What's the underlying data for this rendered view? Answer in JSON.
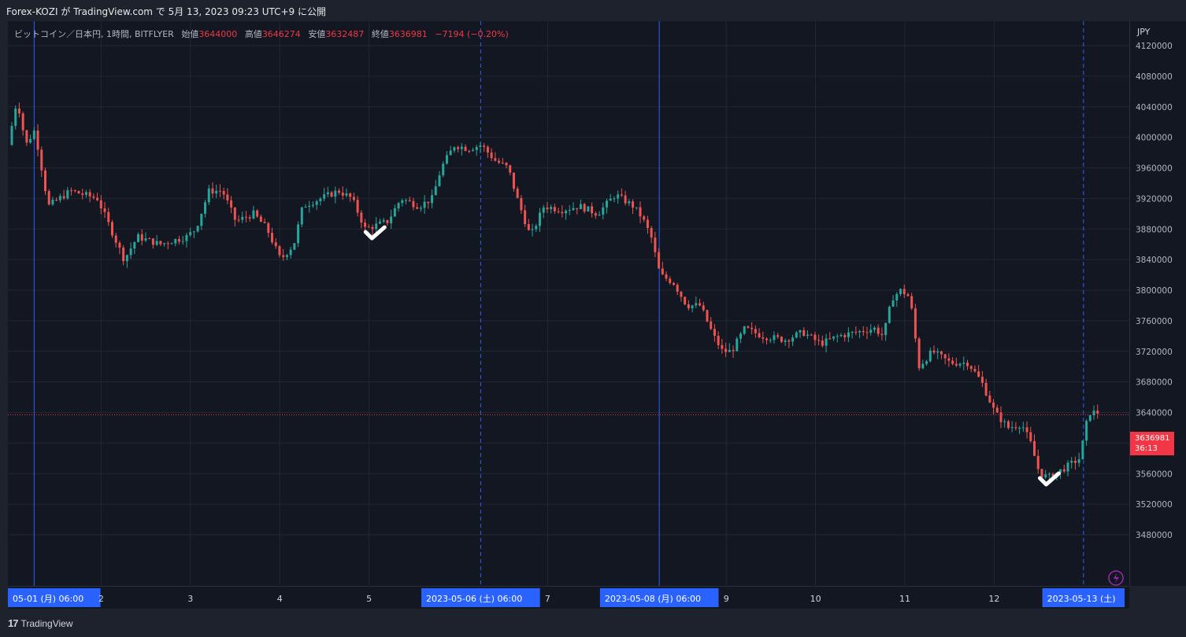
{
  "header": {
    "publish_text": "Forex-KOZI が TradingView.com で 5月 13, 2023 09:23 UTC+9 に公開"
  },
  "legend": {
    "symbol": "ビットコイン／日本円, 1時間, BITFLYER",
    "open_label": "始値",
    "open": "3644000",
    "high_label": "高値",
    "high": "3646274",
    "low_label": "安値",
    "low": "3632487",
    "close_label": "終値",
    "close": "3636981",
    "change": "−7194 (−0.20%)"
  },
  "price_axis": {
    "currency": "JPY"
  },
  "last_price_tag": {
    "price": "3636981",
    "countdown": "36:13"
  },
  "footer": {
    "brand": "TradingView"
  },
  "colors": {
    "up": "#26a69a",
    "down": "#ef5350",
    "background": "#131722",
    "accent": "#2962ff"
  },
  "chart_data": {
    "type": "candlestick",
    "timeframe": "1h",
    "ylim": [
      3450000,
      4130000
    ],
    "y_ticks": [
      "4120000",
      "4080000",
      "4040000",
      "4000000",
      "3960000",
      "3920000",
      "3880000",
      "3840000",
      "3800000",
      "3760000",
      "3720000",
      "3680000",
      "3640000",
      "3600000",
      "3560000",
      "3520000",
      "3480000"
    ],
    "x_ticks": [
      {
        "label": "05-01 (月)  06:00",
        "highlight": true,
        "day": 0.25
      },
      {
        "label": "2",
        "highlight": false,
        "day": 1
      },
      {
        "label": "3",
        "highlight": false,
        "day": 2
      },
      {
        "label": "4",
        "highlight": false,
        "day": 3
      },
      {
        "label": "5",
        "highlight": false,
        "day": 4
      },
      {
        "label": "2023-05-06 (土)  06:00",
        "highlight": true,
        "day": 5.25
      },
      {
        "label": "7",
        "highlight": false,
        "day": 6
      },
      {
        "label": "2023-05-08 (月)  06:00",
        "highlight": true,
        "day": 7.25
      },
      {
        "label": "9",
        "highlight": false,
        "day": 8
      },
      {
        "label": "10",
        "highlight": false,
        "day": 9
      },
      {
        "label": "11",
        "highlight": false,
        "day": 10
      },
      {
        "label": "12",
        "highlight": false,
        "day": 11
      },
      {
        "label": "2023-05-13 (土)",
        "highlight": true,
        "day": 12.0
      }
    ],
    "vertical_lines": [
      {
        "day": 0.25,
        "style": "solid"
      },
      {
        "day": 5.25,
        "style": "dashed"
      },
      {
        "day": 7.25,
        "style": "solid"
      },
      {
        "day": 12.0,
        "style": "dashed"
      }
    ],
    "checkmarks": [
      {
        "day": 4.05,
        "price": 3872000
      },
      {
        "day": 11.6,
        "price": 3550000
      }
    ],
    "last_price": 3636981,
    "anchors": [
      [
        0.0,
        3990000
      ],
      [
        0.1,
        4050000
      ],
      [
        0.2,
        3990000
      ],
      [
        0.3,
        4010000
      ],
      [
        0.45,
        3910000
      ],
      [
        0.7,
        3930000
      ],
      [
        1.0,
        3920000
      ],
      [
        1.15,
        3880000
      ],
      [
        1.3,
        3840000
      ],
      [
        1.45,
        3870000
      ],
      [
        1.7,
        3860000
      ],
      [
        2.0,
        3870000
      ],
      [
        2.1,
        3880000
      ],
      [
        2.25,
        3930000
      ],
      [
        2.4,
        3930000
      ],
      [
        2.55,
        3890000
      ],
      [
        2.75,
        3900000
      ],
      [
        2.9,
        3880000
      ],
      [
        3.05,
        3840000
      ],
      [
        3.2,
        3860000
      ],
      [
        3.3,
        3910000
      ],
      [
        3.5,
        3920000
      ],
      [
        3.7,
        3930000
      ],
      [
        3.85,
        3920000
      ],
      [
        4.0,
        3880000
      ],
      [
        4.25,
        3890000
      ],
      [
        4.4,
        3920000
      ],
      [
        4.6,
        3910000
      ],
      [
        4.75,
        3920000
      ],
      [
        4.85,
        3960000
      ],
      [
        5.0,
        3990000
      ],
      [
        5.15,
        3985000
      ],
      [
        5.3,
        3990000
      ],
      [
        5.45,
        3970000
      ],
      [
        5.6,
        3960000
      ],
      [
        5.7,
        3920000
      ],
      [
        5.85,
        3870000
      ],
      [
        6.0,
        3910000
      ],
      [
        6.2,
        3905000
      ],
      [
        6.4,
        3910000
      ],
      [
        6.6,
        3900000
      ],
      [
        6.8,
        3925000
      ],
      [
        7.0,
        3910000
      ],
      [
        7.1,
        3895000
      ],
      [
        7.2,
        3870000
      ],
      [
        7.3,
        3820000
      ],
      [
        7.45,
        3810000
      ],
      [
        7.6,
        3780000
      ],
      [
        7.75,
        3780000
      ],
      [
        7.9,
        3740000
      ],
      [
        8.0,
        3720000
      ],
      [
        8.1,
        3720000
      ],
      [
        8.25,
        3750000
      ],
      [
        8.45,
        3740000
      ],
      [
        8.7,
        3735000
      ],
      [
        8.9,
        3745000
      ],
      [
        9.1,
        3730000
      ],
      [
        9.3,
        3740000
      ],
      [
        9.5,
        3745000
      ],
      [
        9.7,
        3750000
      ],
      [
        9.8,
        3740000
      ],
      [
        9.9,
        3790000
      ],
      [
        10.0,
        3800000
      ],
      [
        10.1,
        3790000
      ],
      [
        10.2,
        3700000
      ],
      [
        10.35,
        3720000
      ],
      [
        10.55,
        3705000
      ],
      [
        10.75,
        3705000
      ],
      [
        10.9,
        3680000
      ],
      [
        11.05,
        3640000
      ],
      [
        11.2,
        3620000
      ],
      [
        11.35,
        3625000
      ],
      [
        11.45,
        3600000
      ],
      [
        11.55,
        3560000
      ],
      [
        11.65,
        3555000
      ],
      [
        11.8,
        3565000
      ],
      [
        12.0,
        3580000
      ],
      [
        12.1,
        3640000
      ],
      [
        12.2,
        3640000
      ]
    ]
  }
}
